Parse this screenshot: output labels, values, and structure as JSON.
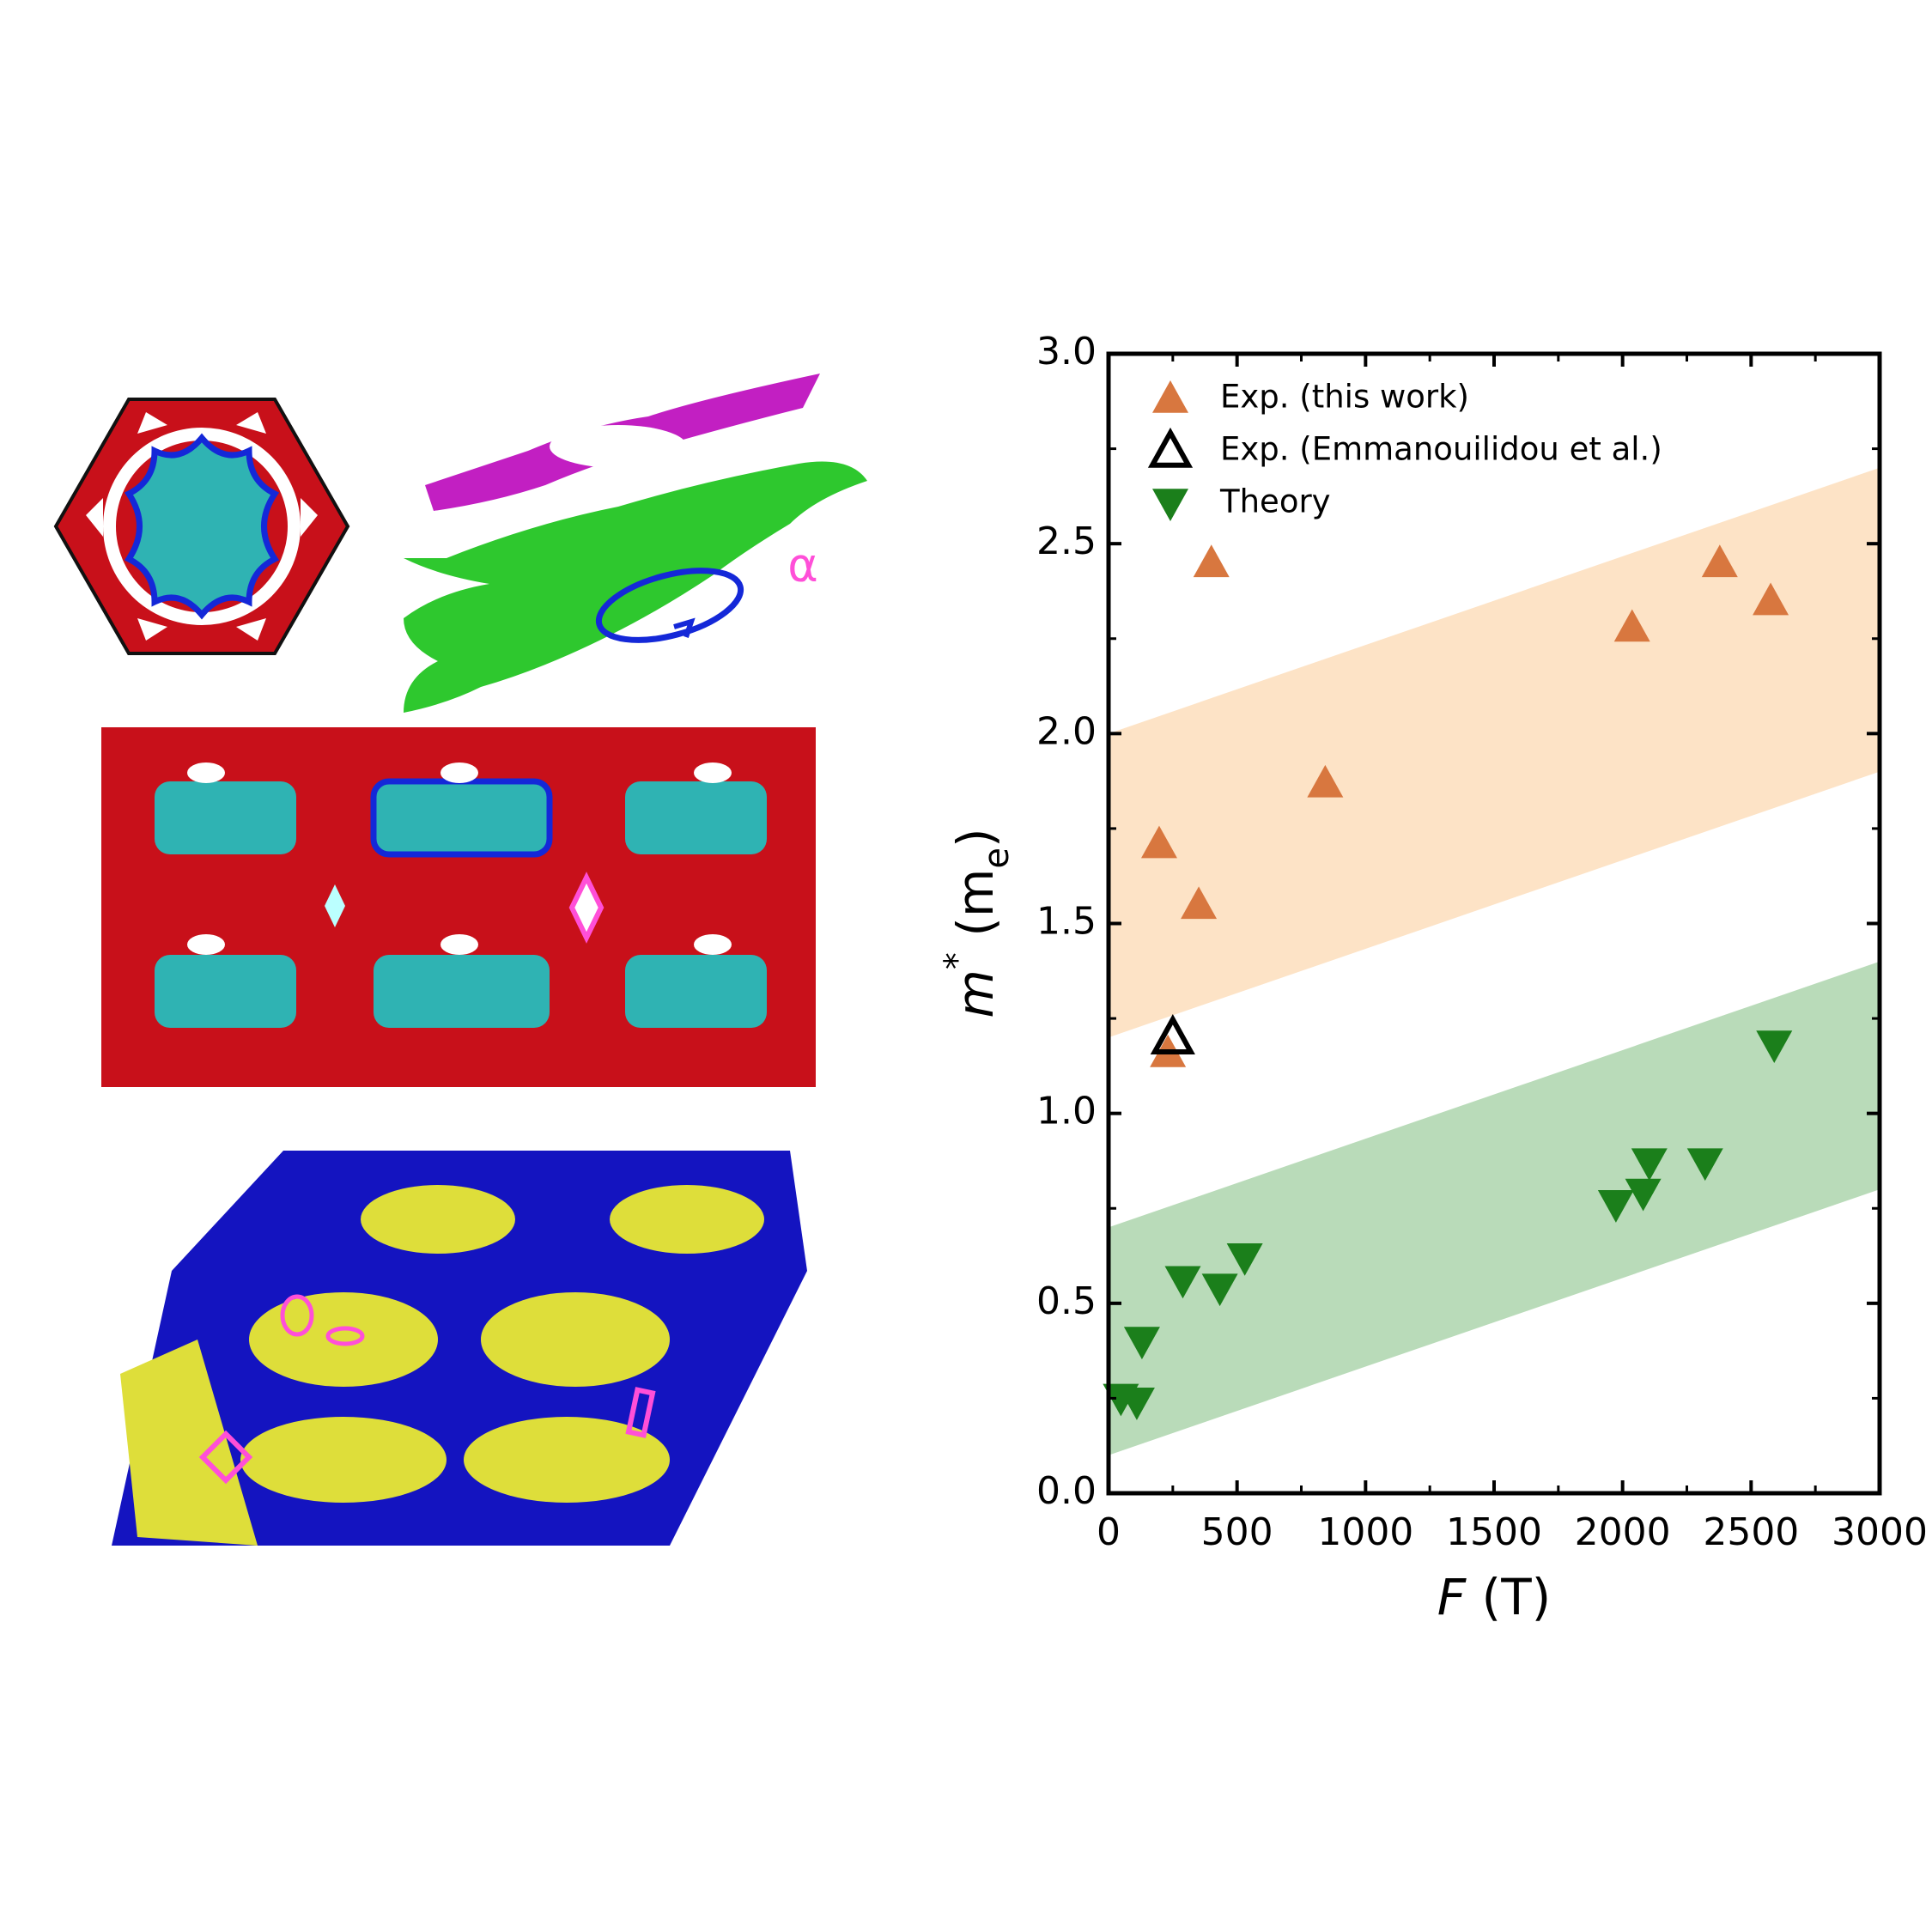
{
  "chart_data": {
    "type": "scatter",
    "xlabel": [
      "F",
      " (T)"
    ],
    "ylabel": [
      "m",
      "*",
      " (m",
      "e",
      ")"
    ],
    "xlim": [
      0,
      3000
    ],
    "ylim": [
      0,
      3.0
    ],
    "xticks": [
      0,
      500,
      1000,
      1500,
      2000,
      2500,
      3000
    ],
    "xticks_minor": [
      250,
      750,
      1250,
      1750,
      2250,
      2750
    ],
    "yticks": [
      {
        "value": 0,
        "label": "0.0"
      },
      0.5,
      {
        "value": 1,
        "label": "1.0"
      },
      1.5,
      {
        "value": 2,
        "label": "2.0"
      },
      2.5,
      {
        "value": 3,
        "label": "3.0"
      }
    ],
    "yticks_minor": [
      0.25,
      0.75,
      1.25,
      1.75,
      2.25,
      2.75
    ],
    "legend": "upper left",
    "bands": [
      {
        "color": "#fde3c6",
        "x": [
          0,
          3000
        ],
        "lower": [
          1.2,
          1.9
        ],
        "upper": [
          2.0,
          2.7
        ]
      },
      {
        "color": "#b9dbb9",
        "x": [
          0,
          3000
        ],
        "lower": [
          0.1,
          0.8
        ],
        "upper": [
          0.7,
          1.4
        ]
      }
    ],
    "series": [
      {
        "name": "Exp. (this work)",
        "color": "#d8773f",
        "marker": "triangle-up",
        "filled": true,
        "x": [
          197,
          351,
          400,
          843,
          231,
          2037,
          2378,
          2576
        ],
        "values": [
          1.71,
          1.55,
          2.45,
          1.87,
          1.16,
          2.28,
          2.45,
          2.35
        ]
      },
      {
        "name": "Exp. (Emmanouilidou et al.)",
        "color": "#000000",
        "marker": "triangle-up",
        "filled": false,
        "x": [
          250
        ],
        "values": [
          1.2
        ]
      },
      {
        "name": "Theory",
        "color": "#1b7f1b",
        "marker": "triangle-down",
        "filled": true,
        "x": [
          48,
          110,
          130,
          289,
          433,
          530,
          1974,
          2080,
          2104,
          2321,
          2590
        ],
        "values": [
          0.25,
          0.24,
          0.4,
          0.56,
          0.54,
          0.62,
          0.76,
          0.79,
          0.87,
          0.87,
          1.18
        ]
      }
    ]
  },
  "panels": {
    "orbit_label": "α"
  }
}
